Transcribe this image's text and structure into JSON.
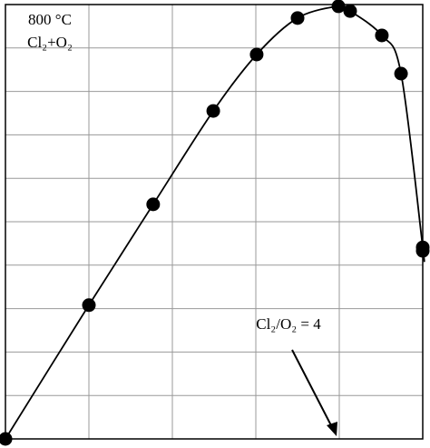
{
  "chart_data": {
    "type": "line",
    "annotations": [
      "800 °C",
      "Cl₂+O₂",
      "Cl₂/O₂ = 4"
    ],
    "x": [
      0,
      1.0,
      1.77,
      2.49,
      3.01,
      3.5,
      3.99,
      4.13,
      4.51,
      4.74,
      5.0,
      5.0
    ],
    "series": [
      {
        "color": "#000000",
        "values": [
          0,
          3.08,
          5.4,
          7.55,
          8.85,
          9.69,
          9.96,
          9.85,
          9.29,
          8.41,
          4.41,
          4.33
        ]
      }
    ],
    "xlim": [
      0,
      5
    ],
    "ylim": [
      0,
      10
    ],
    "xticks": [
      0,
      1,
      2,
      3,
      4,
      5
    ],
    "yticks": [
      0,
      1,
      2,
      3,
      4,
      5,
      6,
      7,
      8,
      9,
      10
    ],
    "grid": true,
    "tick_labels": false
  }
}
